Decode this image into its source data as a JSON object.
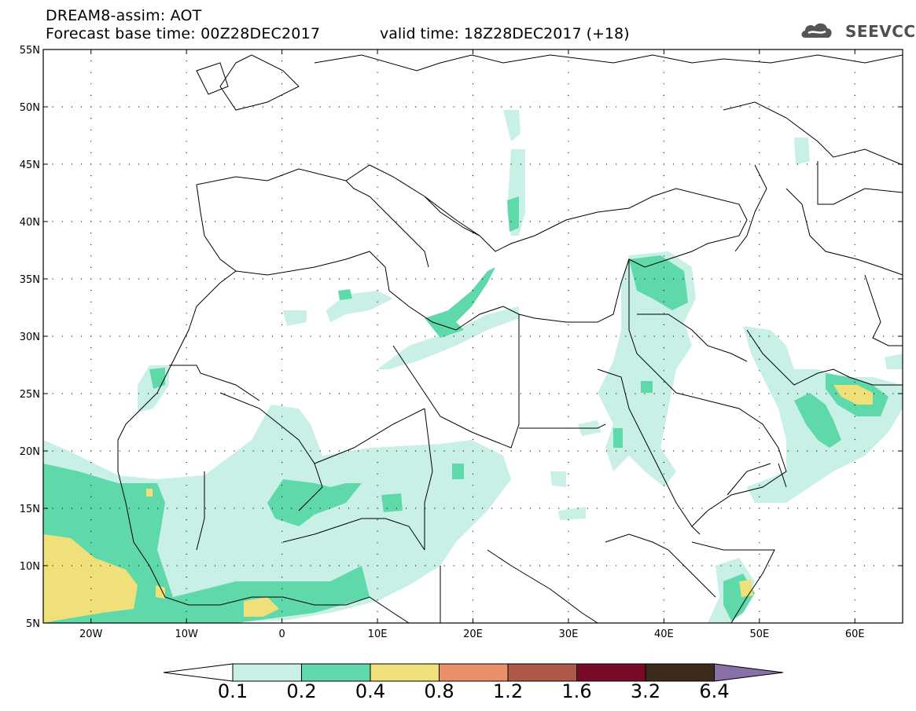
{
  "header": {
    "line1": "DREAM8-assim: AOT",
    "line2": "Forecast base time: 00Z28DEC2017",
    "valid": "valid time: 18Z28DEC2017 (+18)"
  },
  "logo": {
    "text": "SEEVCCC",
    "icon": "cloud-icon"
  },
  "axes": {
    "lat_labels": [
      "55N",
      "50N",
      "45N",
      "40N",
      "35N",
      "30N",
      "25N",
      "20N",
      "15N",
      "10N",
      "5N"
    ],
    "lon_labels": [
      "20W",
      "10W",
      "0",
      "10E",
      "20E",
      "30E",
      "40E",
      "50E",
      "60E"
    ],
    "lat_range": [
      5,
      55
    ],
    "lon_range": [
      -25,
      65
    ]
  },
  "colorbar": {
    "labels": [
      "0.1",
      "0.2",
      "0.4",
      "0.8",
      "1.2",
      "1.6",
      "3.2",
      "6.4"
    ],
    "colors": [
      "#ffffff",
      "#c8f0e6",
      "#5fd9aa",
      "#f0e07a",
      "#e9906a",
      "#b05848",
      "#7a0a28",
      "#3c2a1a",
      "#8a70a8"
    ]
  },
  "field": {
    "variable": "AOT"
  }
}
